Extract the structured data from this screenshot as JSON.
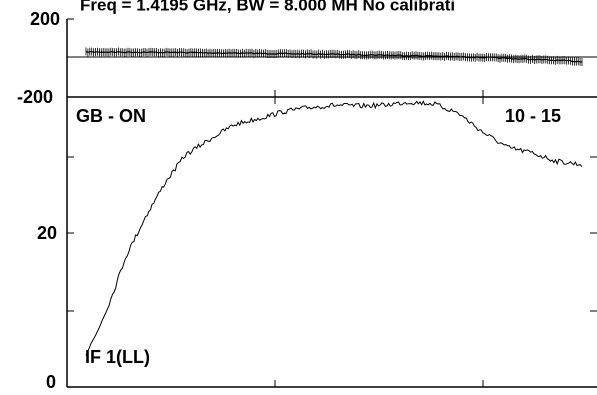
{
  "title": "Freq = 1.4195 GHz, BW = 8.000 MH  No calibrati",
  "colors": {
    "trace": "#000000",
    "frame": "#000000",
    "background": "#ffffff"
  },
  "chart_data": [
    {
      "type": "line",
      "panel": "phase",
      "y_tick_labels": [
        "200",
        "-200"
      ],
      "ylim": [
        -200,
        200
      ],
      "x": [
        0,
        0.1,
        0.2,
        0.3,
        0.4,
        0.5,
        0.6,
        0.7,
        0.8,
        0.9,
        1.0
      ],
      "values": [
        31,
        30,
        28,
        25,
        22,
        19,
        15,
        10,
        3,
        -7,
        -18
      ],
      "style": "dense crosshatch markers along trace",
      "grid": false
    },
    {
      "type": "line",
      "panel": "amplitude",
      "labels": {
        "top_left": "GB - ON",
        "top_right": "10 - 15",
        "bottom_left": "IF 1(LL)"
      },
      "y_tick_labels": [
        "20",
        "0"
      ],
      "ylim": [
        0,
        40
      ],
      "x": [
        0,
        0.02,
        0.05,
        0.08,
        0.12,
        0.16,
        0.2,
        0.25,
        0.3,
        0.35,
        0.4,
        0.45,
        0.5,
        0.55,
        0.6,
        0.65,
        0.7,
        0.75,
        0.8,
        0.85,
        0.9,
        0.95,
        1.0
      ],
      "values": [
        4.3,
        6.8,
        11.4,
        16.9,
        22.1,
        26.6,
        30.1,
        32.2,
        34.1,
        34.9,
        35.8,
        36.3,
        36.6,
        36.5,
        36.6,
        37.0,
        36.8,
        35.6,
        33.1,
        31.1,
        30.4,
        29.3,
        28.9
      ],
      "grid": false
    }
  ]
}
